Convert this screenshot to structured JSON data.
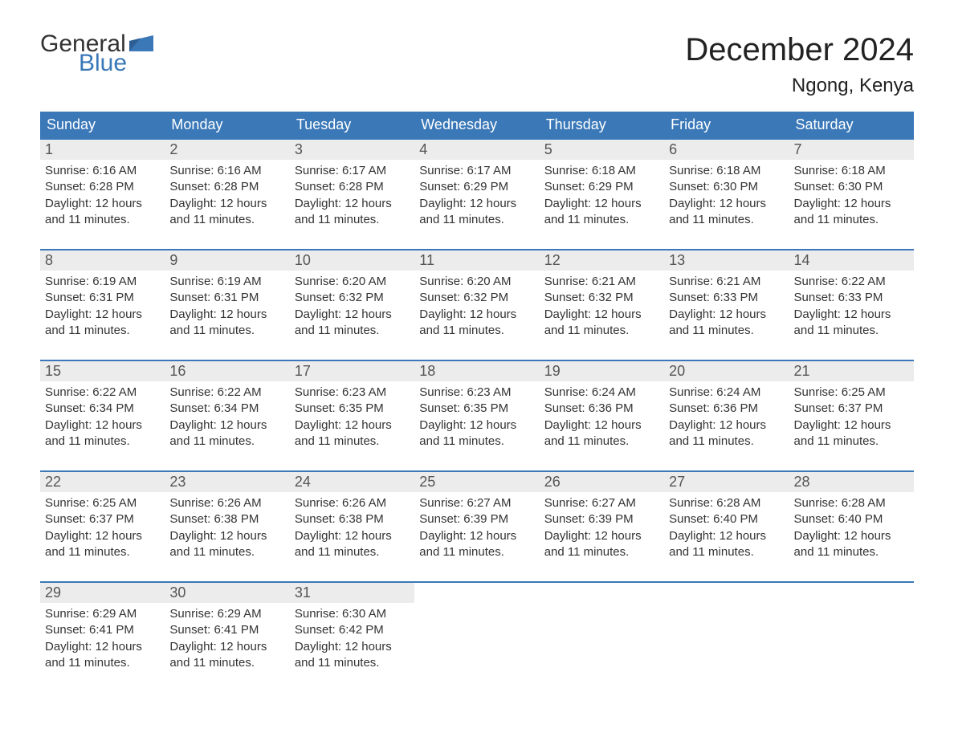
{
  "logo": {
    "word1": "General",
    "word2": "Blue",
    "word1_color": "#333333",
    "word2_color": "#3a78b8"
  },
  "title": "December 2024",
  "location": "Ngong, Kenya",
  "colors": {
    "header_bg": "#3a78b8",
    "header_text": "#ffffff",
    "daynum_bg": "#ececec",
    "daynum_text": "#555555",
    "week_border": "#3a78b8",
    "body_text": "#333333",
    "page_bg": "#ffffff"
  },
  "fonts": {
    "title_pt": 40,
    "location_pt": 24,
    "dow_pt": 18,
    "daynum_pt": 18,
    "body_pt": 15
  },
  "days_of_week": [
    "Sunday",
    "Monday",
    "Tuesday",
    "Wednesday",
    "Thursday",
    "Friday",
    "Saturday"
  ],
  "labels": {
    "sunrise": "Sunrise:",
    "sunset": "Sunset:",
    "daylight": "Daylight:"
  },
  "weeks": [
    [
      {
        "n": "1",
        "sunrise": "6:16 AM",
        "sunset": "6:28 PM",
        "daylight": "12 hours and 11 minutes."
      },
      {
        "n": "2",
        "sunrise": "6:16 AM",
        "sunset": "6:28 PM",
        "daylight": "12 hours and 11 minutes."
      },
      {
        "n": "3",
        "sunrise": "6:17 AM",
        "sunset": "6:28 PM",
        "daylight": "12 hours and 11 minutes."
      },
      {
        "n": "4",
        "sunrise": "6:17 AM",
        "sunset": "6:29 PM",
        "daylight": "12 hours and 11 minutes."
      },
      {
        "n": "5",
        "sunrise": "6:18 AM",
        "sunset": "6:29 PM",
        "daylight": "12 hours and 11 minutes."
      },
      {
        "n": "6",
        "sunrise": "6:18 AM",
        "sunset": "6:30 PM",
        "daylight": "12 hours and 11 minutes."
      },
      {
        "n": "7",
        "sunrise": "6:18 AM",
        "sunset": "6:30 PM",
        "daylight": "12 hours and 11 minutes."
      }
    ],
    [
      {
        "n": "8",
        "sunrise": "6:19 AM",
        "sunset": "6:31 PM",
        "daylight": "12 hours and 11 minutes."
      },
      {
        "n": "9",
        "sunrise": "6:19 AM",
        "sunset": "6:31 PM",
        "daylight": "12 hours and 11 minutes."
      },
      {
        "n": "10",
        "sunrise": "6:20 AM",
        "sunset": "6:32 PM",
        "daylight": "12 hours and 11 minutes."
      },
      {
        "n": "11",
        "sunrise": "6:20 AM",
        "sunset": "6:32 PM",
        "daylight": "12 hours and 11 minutes."
      },
      {
        "n": "12",
        "sunrise": "6:21 AM",
        "sunset": "6:32 PM",
        "daylight": "12 hours and 11 minutes."
      },
      {
        "n": "13",
        "sunrise": "6:21 AM",
        "sunset": "6:33 PM",
        "daylight": "12 hours and 11 minutes."
      },
      {
        "n": "14",
        "sunrise": "6:22 AM",
        "sunset": "6:33 PM",
        "daylight": "12 hours and 11 minutes."
      }
    ],
    [
      {
        "n": "15",
        "sunrise": "6:22 AM",
        "sunset": "6:34 PM",
        "daylight": "12 hours and 11 minutes."
      },
      {
        "n": "16",
        "sunrise": "6:22 AM",
        "sunset": "6:34 PM",
        "daylight": "12 hours and 11 minutes."
      },
      {
        "n": "17",
        "sunrise": "6:23 AM",
        "sunset": "6:35 PM",
        "daylight": "12 hours and 11 minutes."
      },
      {
        "n": "18",
        "sunrise": "6:23 AM",
        "sunset": "6:35 PM",
        "daylight": "12 hours and 11 minutes."
      },
      {
        "n": "19",
        "sunrise": "6:24 AM",
        "sunset": "6:36 PM",
        "daylight": "12 hours and 11 minutes."
      },
      {
        "n": "20",
        "sunrise": "6:24 AM",
        "sunset": "6:36 PM",
        "daylight": "12 hours and 11 minutes."
      },
      {
        "n": "21",
        "sunrise": "6:25 AM",
        "sunset": "6:37 PM",
        "daylight": "12 hours and 11 minutes."
      }
    ],
    [
      {
        "n": "22",
        "sunrise": "6:25 AM",
        "sunset": "6:37 PM",
        "daylight": "12 hours and 11 minutes."
      },
      {
        "n": "23",
        "sunrise": "6:26 AM",
        "sunset": "6:38 PM",
        "daylight": "12 hours and 11 minutes."
      },
      {
        "n": "24",
        "sunrise": "6:26 AM",
        "sunset": "6:38 PM",
        "daylight": "12 hours and 11 minutes."
      },
      {
        "n": "25",
        "sunrise": "6:27 AM",
        "sunset": "6:39 PM",
        "daylight": "12 hours and 11 minutes."
      },
      {
        "n": "26",
        "sunrise": "6:27 AM",
        "sunset": "6:39 PM",
        "daylight": "12 hours and 11 minutes."
      },
      {
        "n": "27",
        "sunrise": "6:28 AM",
        "sunset": "6:40 PM",
        "daylight": "12 hours and 11 minutes."
      },
      {
        "n": "28",
        "sunrise": "6:28 AM",
        "sunset": "6:40 PM",
        "daylight": "12 hours and 11 minutes."
      }
    ],
    [
      {
        "n": "29",
        "sunrise": "6:29 AM",
        "sunset": "6:41 PM",
        "daylight": "12 hours and 11 minutes."
      },
      {
        "n": "30",
        "sunrise": "6:29 AM",
        "sunset": "6:41 PM",
        "daylight": "12 hours and 11 minutes."
      },
      {
        "n": "31",
        "sunrise": "6:30 AM",
        "sunset": "6:42 PM",
        "daylight": "12 hours and 11 minutes."
      },
      null,
      null,
      null,
      null
    ]
  ]
}
